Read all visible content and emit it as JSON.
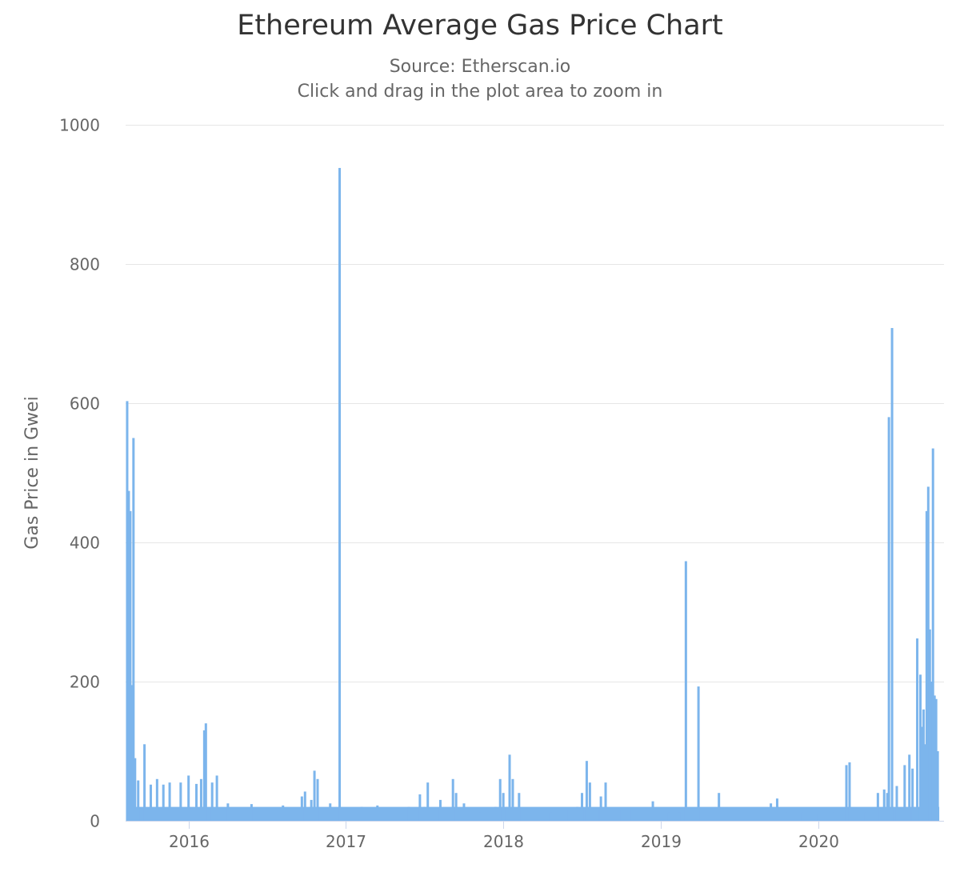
{
  "chart_data": {
    "type": "bar",
    "title": "Ethereum Average Gas Price Chart",
    "source": "Source: Etherscan.io",
    "subtitle": "Click and drag in the plot area to zoom in",
    "ylabel": "Gas Price in Gwei",
    "xlabel": "",
    "ylim": [
      0,
      1000
    ],
    "y_ticks": [
      0,
      200,
      400,
      600,
      800,
      1000
    ],
    "y_tick_labels": [
      "0",
      "200",
      "400",
      "600",
      "800",
      "1000"
    ],
    "x_range": [
      2015.6,
      2020.8
    ],
    "x_ticks": [
      2016,
      2017,
      2018,
      2019,
      2020
    ],
    "x_tick_labels": [
      "2016",
      "2017",
      "2018",
      "2019",
      "2020"
    ],
    "grid": true,
    "bar_color": "#7cb5ec",
    "grid_color": "#e6e6e6",
    "axis_color": "#ccd6eb",
    "x": [
      2015.61,
      2015.62,
      2015.63,
      2015.64,
      2015.65,
      2015.66,
      2015.68,
      2015.72,
      2015.76,
      2015.8,
      2015.84,
      2015.88,
      2015.95,
      2016.0,
      2016.05,
      2016.08,
      2016.1,
      2016.11,
      2016.15,
      2016.18,
      2016.25,
      2016.4,
      2016.6,
      2016.72,
      2016.74,
      2016.78,
      2016.8,
      2016.82,
      2016.9,
      2016.96,
      2017.1,
      2017.2,
      2017.4,
      2017.47,
      2017.5,
      2017.52,
      2017.6,
      2017.68,
      2017.7,
      2017.75,
      2017.85,
      2017.95,
      2017.98,
      2018.0,
      2018.02,
      2018.04,
      2018.06,
      2018.1,
      2018.2,
      2018.3,
      2018.4,
      2018.47,
      2018.5,
      2018.53,
      2018.55,
      2018.6,
      2018.62,
      2018.65,
      2018.75,
      2018.8,
      2018.95,
      2019.05,
      2019.12,
      2019.16,
      2019.2,
      2019.24,
      2019.3,
      2019.37,
      2019.5,
      2019.6,
      2019.7,
      2019.74,
      2019.8,
      2019.9,
      2020.0,
      2020.1,
      2020.18,
      2020.2,
      2020.3,
      2020.38,
      2020.42,
      2020.44,
      2020.45,
      2020.47,
      2020.5,
      2020.55,
      2020.58,
      2020.6,
      2020.63,
      2020.65,
      2020.66,
      2020.67,
      2020.68,
      2020.69,
      2020.7,
      2020.71,
      2020.72,
      2020.73,
      2020.74,
      2020.75,
      2020.76
    ],
    "values": [
      603,
      474,
      445,
      195,
      550,
      90,
      58,
      110,
      52,
      60,
      52,
      55,
      55,
      65,
      53,
      60,
      130,
      140,
      55,
      65,
      25,
      24,
      22,
      35,
      42,
      30,
      72,
      60,
      25,
      938,
      20,
      22,
      20,
      38,
      20,
      55,
      30,
      60,
      40,
      25,
      12,
      20,
      60,
      40,
      20,
      95,
      60,
      40,
      15,
      12,
      15,
      20,
      40,
      86,
      55,
      15,
      35,
      55,
      15,
      15,
      28,
      12,
      12,
      373,
      10,
      193,
      10,
      40,
      15,
      15,
      25,
      32,
      12,
      12,
      10,
      12,
      80,
      84,
      12,
      40,
      45,
      40,
      580,
      708,
      50,
      80,
      95,
      75,
      262,
      210,
      135,
      160,
      110,
      445,
      480,
      275,
      200,
      535,
      180,
      175,
      100
    ]
  }
}
